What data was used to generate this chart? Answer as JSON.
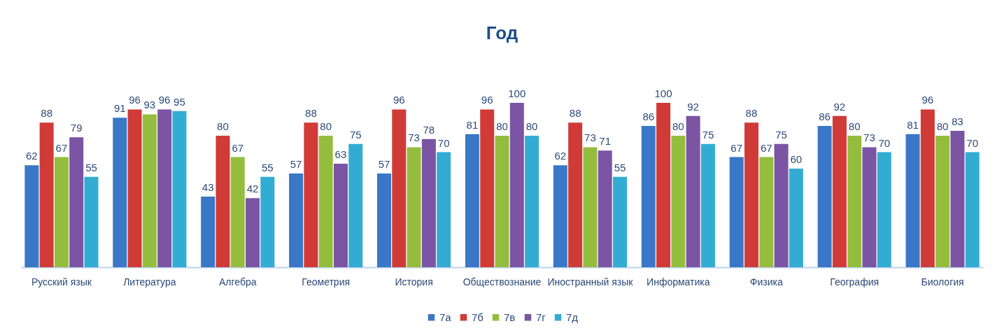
{
  "chart_data": {
    "type": "bar",
    "title": "Год",
    "categories": [
      "Русский язык",
      "Литература",
      "Алгебра",
      "Геометрия",
      "История",
      "Обществознание",
      "Иностранный язык",
      "Информатика",
      "Физика",
      "География",
      "Биология"
    ],
    "series": [
      {
        "name": "7а",
        "color": "#3a77c6",
        "values": [
          62,
          91,
          43,
          57,
          57,
          81,
          62,
          86,
          67,
          86,
          81
        ]
      },
      {
        "name": "7б",
        "color": "#d03b37",
        "values": [
          88,
          96,
          80,
          88,
          96,
          96,
          88,
          100,
          88,
          92,
          96
        ]
      },
      {
        "name": "7в",
        "color": "#94bd3e",
        "values": [
          67,
          93,
          67,
          80,
          73,
          80,
          73,
          80,
          67,
          80,
          80
        ]
      },
      {
        "name": "7г",
        "color": "#7b54a3",
        "values": [
          79,
          96,
          42,
          63,
          78,
          100,
          71,
          92,
          75,
          73,
          83
        ]
      },
      {
        "name": "7д",
        "color": "#33acd4",
        "values": [
          55,
          95,
          55,
          75,
          70,
          80,
          55,
          75,
          60,
          70,
          70
        ]
      }
    ],
    "data_labels": true,
    "legend": "bottom",
    "tick_labels": "x"
  }
}
